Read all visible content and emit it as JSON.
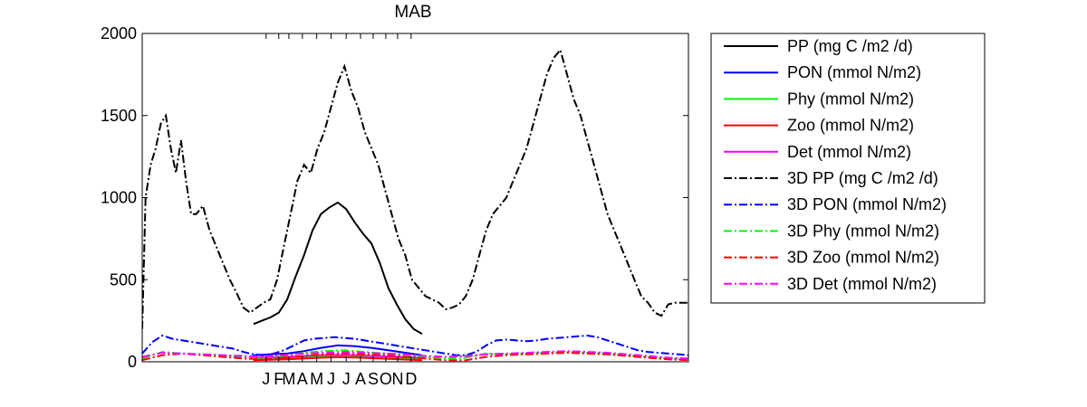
{
  "chart_data": {
    "type": "line",
    "title": "MAB",
    "xlabel": "",
    "ylabel": "",
    "xlim": [
      -132,
      516
    ],
    "ylim": [
      0,
      2000
    ],
    "yticks": [
      0,
      500,
      1000,
      1500,
      2000
    ],
    "xtick_labels": [
      {
        "x": 15,
        "label": "J"
      },
      {
        "x": 30,
        "label": "F"
      },
      {
        "x": 42,
        "label": "M"
      },
      {
        "x": 58,
        "label": "A"
      },
      {
        "x": 75,
        "label": "M"
      },
      {
        "x": 92,
        "label": "J"
      },
      {
        "x": 110,
        "label": "J"
      },
      {
        "x": 127,
        "label": "A"
      },
      {
        "x": 142,
        "label": "S"
      },
      {
        "x": 157,
        "label": "O"
      },
      {
        "x": 171,
        "label": "N"
      },
      {
        "x": 187,
        "label": "D"
      }
    ],
    "grid": false,
    "legend_position": "outside-right",
    "series": [
      {
        "name": "PP (mg C /m2 /d)",
        "color": "#000000",
        "style": "solid",
        "x": [
          0,
          10,
          20,
          30,
          40,
          50,
          60,
          70,
          80,
          90,
          100,
          110,
          120,
          130,
          140,
          150,
          160,
          170,
          180,
          190,
          200
        ],
        "y": [
          230,
          250,
          270,
          300,
          380,
          520,
          650,
          800,
          900,
          940,
          970,
          930,
          850,
          780,
          720,
          600,
          450,
          350,
          260,
          200,
          170
        ]
      },
      {
        "name": "PON (mmol N/m2)",
        "color": "#0000ff",
        "style": "solid",
        "x": [
          0,
          20,
          40,
          60,
          80,
          100,
          120,
          140,
          160,
          180,
          200
        ],
        "y": [
          40,
          45,
          50,
          65,
          85,
          100,
          95,
          85,
          70,
          55,
          40
        ]
      },
      {
        "name": "Phy (mmol N/m2)",
        "color": "#00ff00",
        "style": "solid",
        "x": [
          0,
          20,
          40,
          60,
          80,
          100,
          120,
          140,
          160,
          180,
          200
        ],
        "y": [
          20,
          22,
          25,
          30,
          35,
          38,
          36,
          33,
          28,
          24,
          20
        ]
      },
      {
        "name": "Zoo (mmol N/m2)",
        "color": "#ff0000",
        "style": "solid",
        "x": [
          0,
          20,
          40,
          60,
          80,
          100,
          120,
          140,
          160,
          180,
          200
        ],
        "y": [
          10,
          12,
          15,
          20,
          25,
          28,
          26,
          22,
          18,
          14,
          10
        ]
      },
      {
        "name": "Det (mmol N/m2)",
        "color": "#ff00ff",
        "style": "solid",
        "x": [
          0,
          20,
          40,
          60,
          80,
          100,
          120,
          140,
          160,
          180,
          200
        ],
        "y": [
          25,
          28,
          30,
          35,
          40,
          42,
          40,
          36,
          32,
          28,
          25
        ]
      },
      {
        "name": "3D PP (mg C /m2 /d)",
        "color": "#000000",
        "style": "dashdot",
        "x": [
          -132,
          -128,
          -122,
          -116,
          -110,
          -104,
          -98,
          -92,
          -86,
          -80,
          -74,
          -68,
          -60,
          -52,
          -44,
          -36,
          -28,
          -20,
          -12,
          -4,
          4,
          12,
          20,
          28,
          36,
          44,
          52,
          60,
          68,
          76,
          84,
          92,
          100,
          108,
          116,
          124,
          132,
          140,
          148,
          156,
          164,
          172,
          180,
          188,
          196,
          204,
          212,
          220,
          228,
          236,
          244,
          252,
          260,
          268,
          276,
          284,
          292,
          300,
          308,
          316,
          324,
          332,
          340,
          348,
          356,
          364,
          372,
          380,
          388,
          396,
          404,
          412,
          420,
          428,
          436,
          444,
          452,
          460,
          468,
          476,
          484,
          492,
          500,
          508,
          516
        ],
        "y": [
          200,
          1000,
          1200,
          1300,
          1450,
          1500,
          1300,
          1150,
          1350,
          1100,
          900,
          900,
          950,
          800,
          700,
          600,
          500,
          420,
          330,
          300,
          330,
          360,
          380,
          500,
          700,
          900,
          1100,
          1200,
          1150,
          1300,
          1400,
          1550,
          1700,
          1800,
          1650,
          1550,
          1400,
          1300,
          1200,
          1050,
          900,
          750,
          650,
          500,
          450,
          400,
          380,
          360,
          320,
          330,
          350,
          400,
          500,
          650,
          800,
          900,
          950,
          1000,
          1100,
          1200,
          1300,
          1450,
          1600,
          1750,
          1850,
          1900,
          1750,
          1600,
          1500,
          1350,
          1200,
          1050,
          900,
          800,
          700,
          600,
          500,
          400,
          360,
          300,
          280,
          350,
          360,
          360,
          360
        ]
      },
      {
        "name": "3D PON (mmol N/m2)",
        "color": "#0000ff",
        "style": "dashdot",
        "x": [
          -132,
          -120,
          -108,
          -96,
          -84,
          -72,
          -60,
          -48,
          -36,
          -24,
          -12,
          0,
          12,
          24,
          36,
          48,
          60,
          72,
          84,
          96,
          108,
          120,
          132,
          144,
          156,
          168,
          180,
          192,
          204,
          216,
          228,
          240,
          252,
          264,
          276,
          288,
          300,
          312,
          324,
          336,
          348,
          360,
          372,
          384,
          396,
          408,
          420,
          432,
          444,
          456,
          468,
          480,
          492,
          504,
          516
        ],
        "y": [
          50,
          120,
          160,
          140,
          130,
          120,
          110,
          100,
          90,
          80,
          60,
          45,
          40,
          50,
          70,
          100,
          130,
          140,
          145,
          150,
          145,
          140,
          130,
          120,
          110,
          100,
          90,
          80,
          70,
          60,
          50,
          40,
          40,
          60,
          100,
          130,
          135,
          130,
          125,
          130,
          140,
          145,
          150,
          155,
          160,
          150,
          130,
          110,
          90,
          70,
          60,
          55,
          50,
          45,
          40
        ]
      },
      {
        "name": "3D Phy (mmol N/m2)",
        "color": "#00ff00",
        "style": "dashdot",
        "x": [
          -132,
          -108,
          -84,
          -60,
          -36,
          -12,
          12,
          36,
          60,
          84,
          108,
          132,
          156,
          180,
          204,
          228,
          252,
          276,
          300,
          324,
          348,
          372,
          396,
          420,
          444,
          468,
          492,
          516
        ],
        "y": [
          20,
          60,
          50,
          45,
          40,
          30,
          25,
          35,
          55,
          65,
          70,
          60,
          50,
          40,
          30,
          20,
          25,
          50,
          45,
          50,
          55,
          60,
          55,
          50,
          40,
          30,
          20,
          15
        ]
      },
      {
        "name": "3D Zoo (mmol N/m2)",
        "color": "#ff0000",
        "style": "dashdot",
        "x": [
          -132,
          -108,
          -84,
          -60,
          -36,
          -12,
          12,
          36,
          60,
          84,
          108,
          132,
          156,
          180,
          204,
          228,
          252,
          276,
          300,
          324,
          348,
          372,
          396,
          420,
          444,
          468,
          492,
          516
        ],
        "y": [
          10,
          40,
          50,
          40,
          30,
          20,
          15,
          25,
          35,
          45,
          50,
          45,
          40,
          30,
          20,
          10,
          10,
          30,
          40,
          45,
          50,
          55,
          50,
          45,
          35,
          25,
          15,
          10
        ]
      },
      {
        "name": "3D Det (mmol N/m2)",
        "color": "#ff00ff",
        "style": "dashdot",
        "x": [
          -132,
          -108,
          -84,
          -60,
          -36,
          -12,
          12,
          36,
          60,
          84,
          108,
          132,
          156,
          180,
          204,
          228,
          252,
          276,
          300,
          324,
          348,
          372,
          396,
          420,
          444,
          468,
          492,
          516
        ],
        "y": [
          30,
          55,
          50,
          45,
          40,
          35,
          30,
          40,
          50,
          55,
          60,
          55,
          50,
          45,
          35,
          30,
          35,
          45,
          50,
          55,
          60,
          65,
          60,
          55,
          45,
          35,
          25,
          20
        ]
      }
    ]
  }
}
